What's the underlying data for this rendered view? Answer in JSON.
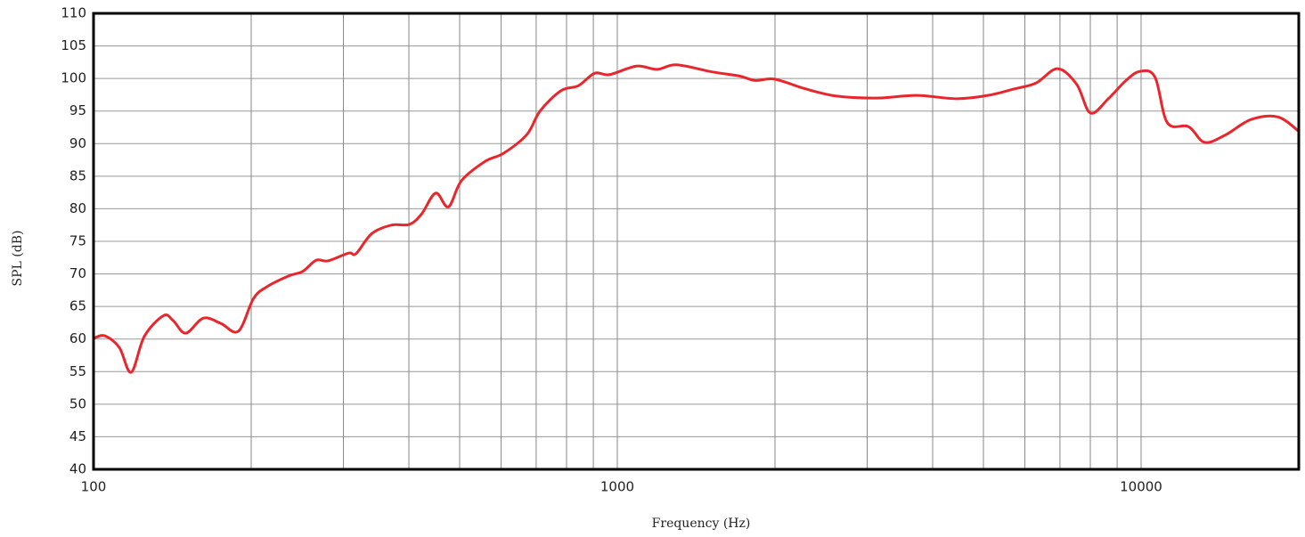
{
  "chart_data": {
    "type": "line",
    "x_label": "Frequency (Hz)",
    "y_label": "SPL (dB)",
    "xscale": "log",
    "grid": true,
    "xlim": [
      100,
      20000
    ],
    "xticks": [
      100,
      1000,
      10000
    ],
    "x_minor_ticks": [
      200,
      300,
      400,
      500,
      600,
      700,
      800,
      900,
      2000,
      3000,
      4000,
      5000,
      6000,
      7000,
      8000,
      9000
    ],
    "ylim": [
      40,
      110
    ],
    "yticks": [
      40,
      45,
      50,
      55,
      60,
      65,
      70,
      75,
      80,
      85,
      90,
      95,
      100,
      105,
      110
    ],
    "series": [
      {
        "name": "SPL",
        "color": "#e8262c",
        "x": [
          100,
          105,
          112,
          118,
          125,
          136,
          142,
          150,
          162,
          175,
          189,
          202,
          214,
          236,
          251,
          266,
          280,
          307,
          317,
          340,
          371,
          401,
          423,
          450,
          476,
          504,
          560,
          606,
          672,
          712,
          780,
          843,
          905,
          967,
          1088,
          1190,
          1298,
          1520,
          1707,
          1834,
          1997,
          2289,
          2623,
          3129,
          3727,
          4442,
          5095,
          5726,
          6300,
          6926,
          7535,
          8003,
          8660,
          9356,
          9958,
          10632,
          11225,
          12325,
          13213,
          14465,
          16209,
          18243,
          20000
        ],
        "values": [
          60.1,
          60.5,
          58.7,
          54.9,
          60.4,
          63.6,
          62.8,
          60.9,
          63.2,
          62.4,
          61.2,
          66.2,
          68,
          69.7,
          70.4,
          72.1,
          72,
          73.2,
          73.1,
          76.2,
          77.5,
          77.6,
          79.2,
          82.4,
          80.3,
          84.3,
          87.3,
          88.5,
          91.4,
          95,
          98.1,
          98.9,
          100.8,
          100.6,
          101.9,
          101.4,
          102.1,
          101,
          100.4,
          99.7,
          99.9,
          98.4,
          97.3,
          97,
          97.4,
          96.9,
          97.4,
          98.4,
          99.3,
          101.5,
          99.1,
          94.7,
          96.9,
          99.7,
          101.1,
          100.2,
          93.2,
          92.6,
          90.2,
          91.3,
          93.7,
          94.1,
          91.9
        ]
      }
    ]
  }
}
